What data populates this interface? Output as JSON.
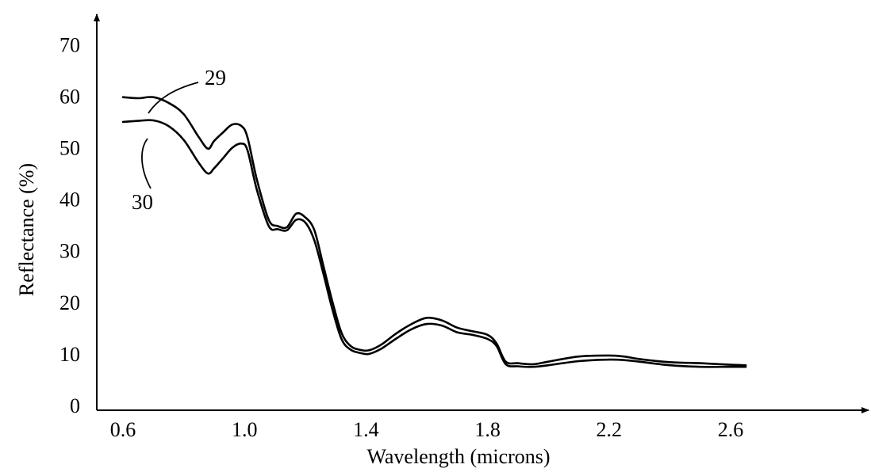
{
  "chart_data": {
    "type": "line",
    "title": "",
    "xlabel": "Wavelength (microns)",
    "ylabel": "Reflectance (%)",
    "xlim": [
      0.6,
      2.7
    ],
    "ylim": [
      0,
      70
    ],
    "x_ticks": [
      "0.6",
      "1.0",
      "1.4",
      "1.8",
      "2.2",
      "2.6"
    ],
    "y_ticks": [
      "0",
      "10",
      "20",
      "30",
      "40",
      "50",
      "60",
      "70"
    ],
    "grid": false,
    "legend": "none",
    "curve_labels": [
      "29",
      "30"
    ],
    "series": [
      {
        "label": "29",
        "x": [
          0.6,
          0.65,
          0.7,
          0.75,
          0.8,
          0.85,
          0.88,
          0.9,
          0.93,
          0.96,
          0.99,
          1.01,
          1.04,
          1.08,
          1.11,
          1.14,
          1.17,
          1.2,
          1.23,
          1.26,
          1.29,
          1.32,
          1.35,
          1.38,
          1.41,
          1.45,
          1.5,
          1.55,
          1.6,
          1.65,
          1.7,
          1.75,
          1.8,
          1.83,
          1.86,
          1.9,
          1.95,
          2.0,
          2.1,
          2.2,
          2.25,
          2.3,
          2.4,
          2.5,
          2.6,
          2.65
        ],
        "y": [
          59.8,
          59.6,
          59.8,
          58.7,
          56.5,
          52.0,
          49.8,
          51.3,
          53.0,
          54.5,
          54.2,
          52.0,
          44.0,
          36.0,
          34.8,
          34.6,
          37.2,
          36.5,
          34.0,
          27.0,
          20.0,
          14.0,
          11.5,
          10.8,
          10.7,
          11.8,
          14.0,
          15.8,
          17.0,
          16.5,
          15.1,
          14.4,
          13.7,
          12.0,
          8.5,
          8.2,
          8.0,
          8.5,
          9.5,
          9.7,
          9.5,
          9.0,
          8.4,
          8.2,
          7.9,
          7.8
        ]
      },
      {
        "label": "30",
        "x": [
          0.6,
          0.65,
          0.7,
          0.75,
          0.8,
          0.85,
          0.88,
          0.9,
          0.93,
          0.96,
          0.99,
          1.01,
          1.04,
          1.08,
          1.11,
          1.14,
          1.17,
          1.2,
          1.23,
          1.26,
          1.29,
          1.32,
          1.35,
          1.38,
          1.41,
          1.45,
          1.5,
          1.55,
          1.6,
          1.65,
          1.7,
          1.75,
          1.8,
          1.83,
          1.86,
          1.9,
          1.95,
          2.0,
          2.1,
          2.2,
          2.25,
          2.3,
          2.4,
          2.5,
          2.6,
          2.65
        ],
        "y": [
          55.0,
          55.2,
          55.3,
          54.2,
          51.5,
          47.0,
          45.0,
          46.0,
          48.0,
          50.0,
          50.8,
          49.5,
          42.0,
          34.8,
          34.2,
          34.0,
          36.0,
          35.5,
          32.0,
          25.5,
          18.5,
          12.8,
          10.8,
          10.2,
          10.0,
          11.0,
          13.0,
          14.8,
          15.8,
          15.5,
          14.2,
          13.7,
          12.9,
          11.5,
          8.0,
          7.6,
          7.5,
          7.8,
          8.6,
          8.9,
          8.8,
          8.5,
          7.8,
          7.5,
          7.5,
          7.5
        ]
      }
    ]
  }
}
